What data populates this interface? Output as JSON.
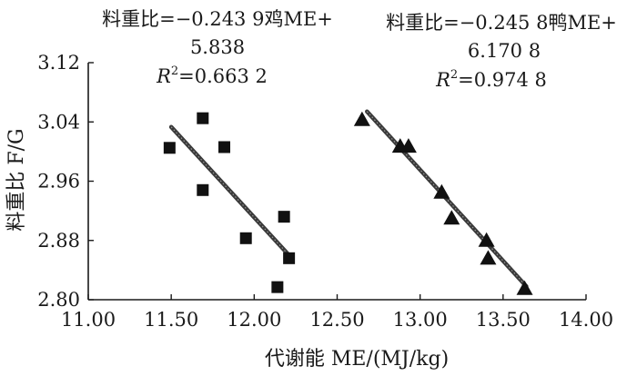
{
  "chart_data": {
    "type": "scatter",
    "xlabel": "代谢能 ME/(MJ/kg)",
    "ylabel": "料重比 F/G",
    "xlim": [
      11.0,
      14.0
    ],
    "ylim": [
      2.8,
      3.12
    ],
    "xticks": [
      "11.00",
      "11.50",
      "12.00",
      "12.50",
      "13.00",
      "13.50",
      "14.00"
    ],
    "yticks": [
      "2.80",
      "2.88",
      "2.96",
      "3.04",
      "3.12"
    ],
    "grid": false,
    "series": [
      {
        "marker": "square",
        "color": "#111111",
        "points": [
          [
            11.49,
            3.005
          ],
          [
            11.69,
            3.045
          ],
          [
            11.69,
            2.948
          ],
          [
            11.82,
            3.006
          ],
          [
            11.95,
            2.883
          ],
          [
            12.18,
            2.912
          ],
          [
            12.21,
            2.856
          ],
          [
            12.14,
            2.817
          ]
        ],
        "fit": {
          "x0": 11.5,
          "x1": 12.21,
          "slope": -0.2439,
          "intercept": 5.838
        },
        "equation": {
          "line1": "料重比=−0.243 9鸡ME+",
          "line2": "5.838",
          "r2_symbol": "R",
          "r2_sup": "2",
          "r2_value": "=0.663 2"
        }
      },
      {
        "marker": "triangle",
        "color": "#111111",
        "points": [
          [
            12.65,
            3.043
          ],
          [
            12.88,
            3.007
          ],
          [
            12.93,
            3.007
          ],
          [
            13.13,
            2.945
          ],
          [
            13.19,
            2.91
          ],
          [
            13.4,
            2.88
          ],
          [
            13.41,
            2.856
          ],
          [
            13.63,
            2.815
          ]
        ],
        "fit": {
          "x0": 12.68,
          "x1": 13.64,
          "slope": -0.2458,
          "intercept": 6.1708
        },
        "equation": {
          "line1": "料重比=−0.245 8鸭ME+",
          "line2": "6.170 8",
          "r2_symbol": "R",
          "r2_sup": "2",
          "r2_value": "=0.974 8"
        }
      }
    ]
  }
}
